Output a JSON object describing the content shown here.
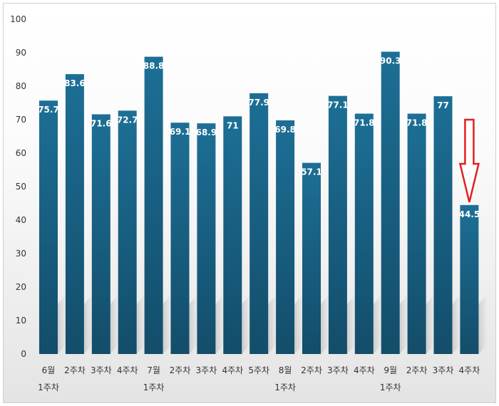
{
  "chart_data": {
    "type": "bar",
    "title": "",
    "xlabel": "",
    "ylabel": "",
    "ylim": [
      0,
      100
    ],
    "yticks": [
      0,
      10,
      20,
      30,
      40,
      50,
      60,
      70,
      80,
      90,
      100
    ],
    "grid": false,
    "legend": "none",
    "categories": [
      [
        "6월",
        "1주차"
      ],
      [
        "2주차"
      ],
      [
        "3주차"
      ],
      [
        "4주차"
      ],
      [
        "7월",
        "1주차"
      ],
      [
        "2주차"
      ],
      [
        "3주차"
      ],
      [
        "4주차"
      ],
      [
        "5주차"
      ],
      [
        "8월",
        "1주차"
      ],
      [
        "2주차"
      ],
      [
        "3주차"
      ],
      [
        "4주차"
      ],
      [
        "9월",
        "1주차"
      ],
      [
        "2주차"
      ],
      [
        "3주차"
      ],
      [
        "4주차"
      ]
    ],
    "values": [
      75.7,
      83.6,
      71.6,
      72.7,
      88.8,
      69.1,
      68.9,
      71,
      77.9,
      69.8,
      57.1,
      77.1,
      71.8,
      90.3,
      71.8,
      77,
      44.5
    ],
    "data_labels": [
      "75.7",
      "83.6",
      "71.6",
      "72.7",
      "88.8",
      "69.1",
      "68.9",
      "71",
      "77.9",
      "69.8",
      "57.1",
      "77.1",
      "71.8",
      "90.3",
      "71.8",
      "77",
      "44.5"
    ],
    "bar_color": "#175d7f",
    "bar_color_light": "#1d6f96",
    "annotation": {
      "type": "down-arrow",
      "target_index": 16,
      "color": "#e02020"
    }
  }
}
